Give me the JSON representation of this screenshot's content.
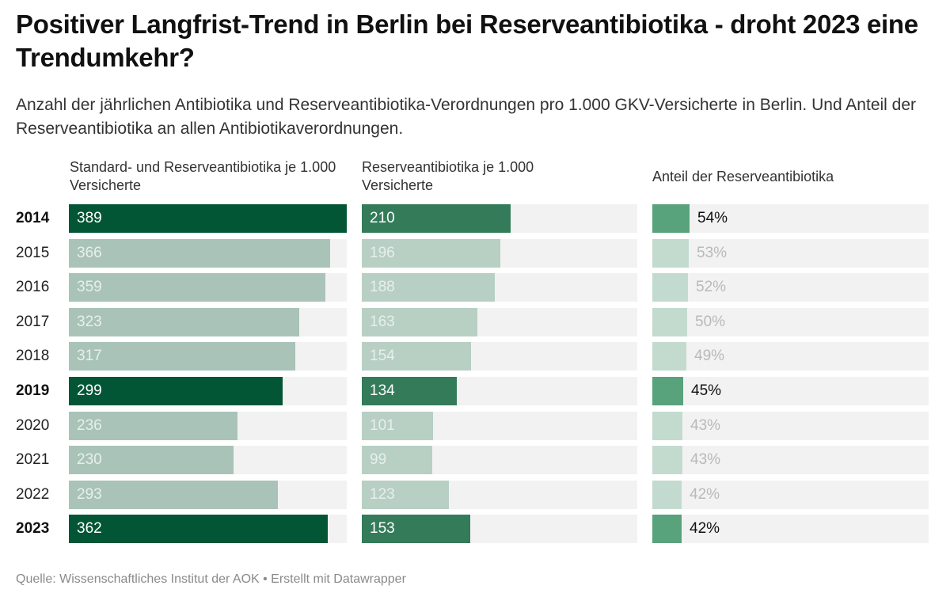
{
  "header": {
    "title": "Positiver Langfrist-Trend in Berlin bei Reserveantibiotika - droht 2023 eine Trendumkehr?",
    "subtitle": "Anzahl der jährlichen Antibiotika und Reserveantibiotika-Verordnungen pro 1.000 GKV-Versicherte in Berlin. Und Anteil der Reserveantibiotika an allen Antibiotikaverordnungen."
  },
  "footer": {
    "source": "Quelle: Wissenschaftliches Institut der AOK • Erstellt mit Datawrapper"
  },
  "colors": {
    "col1_highlight": "#035635",
    "col1_muted": "#a9c3b9",
    "col2_highlight": "#347b5a",
    "col2_muted": "#b8cfc4",
    "col3_highlight": "#58a27c",
    "col3_muted": "#c3dbcf",
    "track": "#f2f2f2"
  },
  "chart_data": {
    "type": "bar",
    "title": "Positiver Langfrist-Trend in Berlin bei Reserveantibiotika - droht 2023 eine Trendumkehr?",
    "xlabel": "",
    "ylabel": "",
    "categories": [
      "2014",
      "2015",
      "2016",
      "2017",
      "2018",
      "2019",
      "2020",
      "2021",
      "2022",
      "2023"
    ],
    "highlighted": [
      "2014",
      "2019",
      "2023"
    ],
    "series": [
      {
        "name": "Standard- und Reserveantibiotika je 1.000 Versicherte",
        "values": [
          389,
          366,
          359,
          323,
          317,
          299,
          236,
          230,
          293,
          362
        ],
        "labels": [
          "389",
          "366",
          "359",
          "323",
          "317",
          "299",
          "236",
          "230",
          "293",
          "362"
        ],
        "range": [
          0,
          389
        ],
        "label_position": "inside"
      },
      {
        "name": "Reserveantibiotika je 1.000 Versicherte",
        "values": [
          210,
          196,
          188,
          163,
          154,
          134,
          101,
          99,
          123,
          153
        ],
        "labels": [
          "210",
          "196",
          "188",
          "163",
          "154",
          "134",
          "101",
          "99",
          "123",
          "153"
        ],
        "range": [
          0,
          389
        ],
        "label_position": "inside"
      },
      {
        "name": "Anteil der Reserveantibiotika",
        "values": [
          54,
          53,
          52,
          50,
          49,
          45,
          43,
          43,
          42,
          42
        ],
        "labels": [
          "54%",
          "53%",
          "52%",
          "50%",
          "49%",
          "45%",
          "43%",
          "43%",
          "42%",
          "42%"
        ],
        "unit": "%",
        "range": [
          0,
          400
        ],
        "label_position": "outside"
      }
    ],
    "grid": false,
    "legend": "none"
  }
}
